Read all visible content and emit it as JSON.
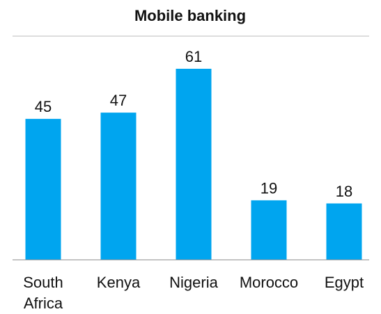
{
  "chart_data": {
    "type": "bar",
    "title": "Mobile banking",
    "categories": [
      "South Africa",
      "Kenya",
      "Nigeria",
      "Morocco",
      "Egypt"
    ],
    "values": [
      45,
      47,
      61,
      19,
      18
    ],
    "color": "#00a5ef"
  }
}
